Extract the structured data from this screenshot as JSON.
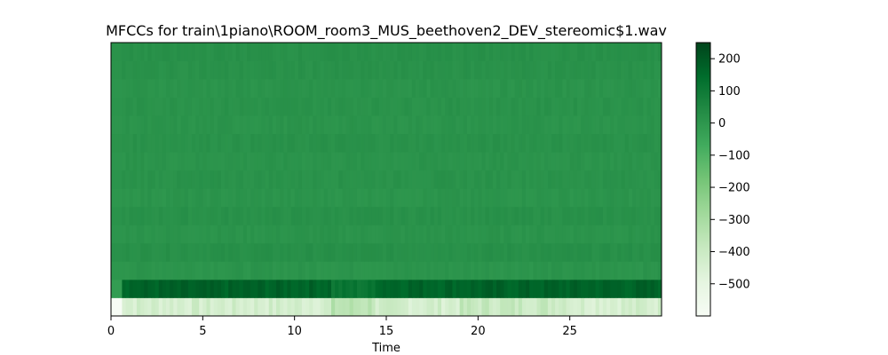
{
  "chart_data": {
    "type": "heatmap",
    "title": "MFCCs for train\\1piano\\ROOM_room3_MUS_beethoven2_DEV_stereomic$1.wav",
    "xlabel": "Time",
    "ylabel": "",
    "xlim": [
      0,
      30
    ],
    "x_ticks": [
      {
        "value": 0,
        "label": "0"
      },
      {
        "value": 5,
        "label": "5"
      },
      {
        "value": 10,
        "label": "10"
      },
      {
        "value": 15,
        "label": "15"
      },
      {
        "value": 20,
        "label": "20"
      },
      {
        "value": 25,
        "label": "25"
      }
    ],
    "y_ticks": [],
    "n_coefficients": 15,
    "coefficient_means": [
      -430,
      170,
      8,
      22,
      10,
      18,
      8,
      14,
      10,
      16,
      9,
      14,
      10,
      16,
      20
    ],
    "colormap": "Greens",
    "colorbar": {
      "vmin": -600,
      "vmax": 250,
      "ticks": [
        {
          "value": 200,
          "label": "200"
        },
        {
          "value": 100,
          "label": "100"
        },
        {
          "value": 0,
          "label": "0"
        },
        {
          "value": -100,
          "label": "−100"
        },
        {
          "value": -200,
          "label": "−200"
        },
        {
          "value": -300,
          "label": "−300"
        },
        {
          "value": -400,
          "label": "−400"
        },
        {
          "value": -500,
          "label": "−500"
        }
      ]
    },
    "grid": false
  }
}
